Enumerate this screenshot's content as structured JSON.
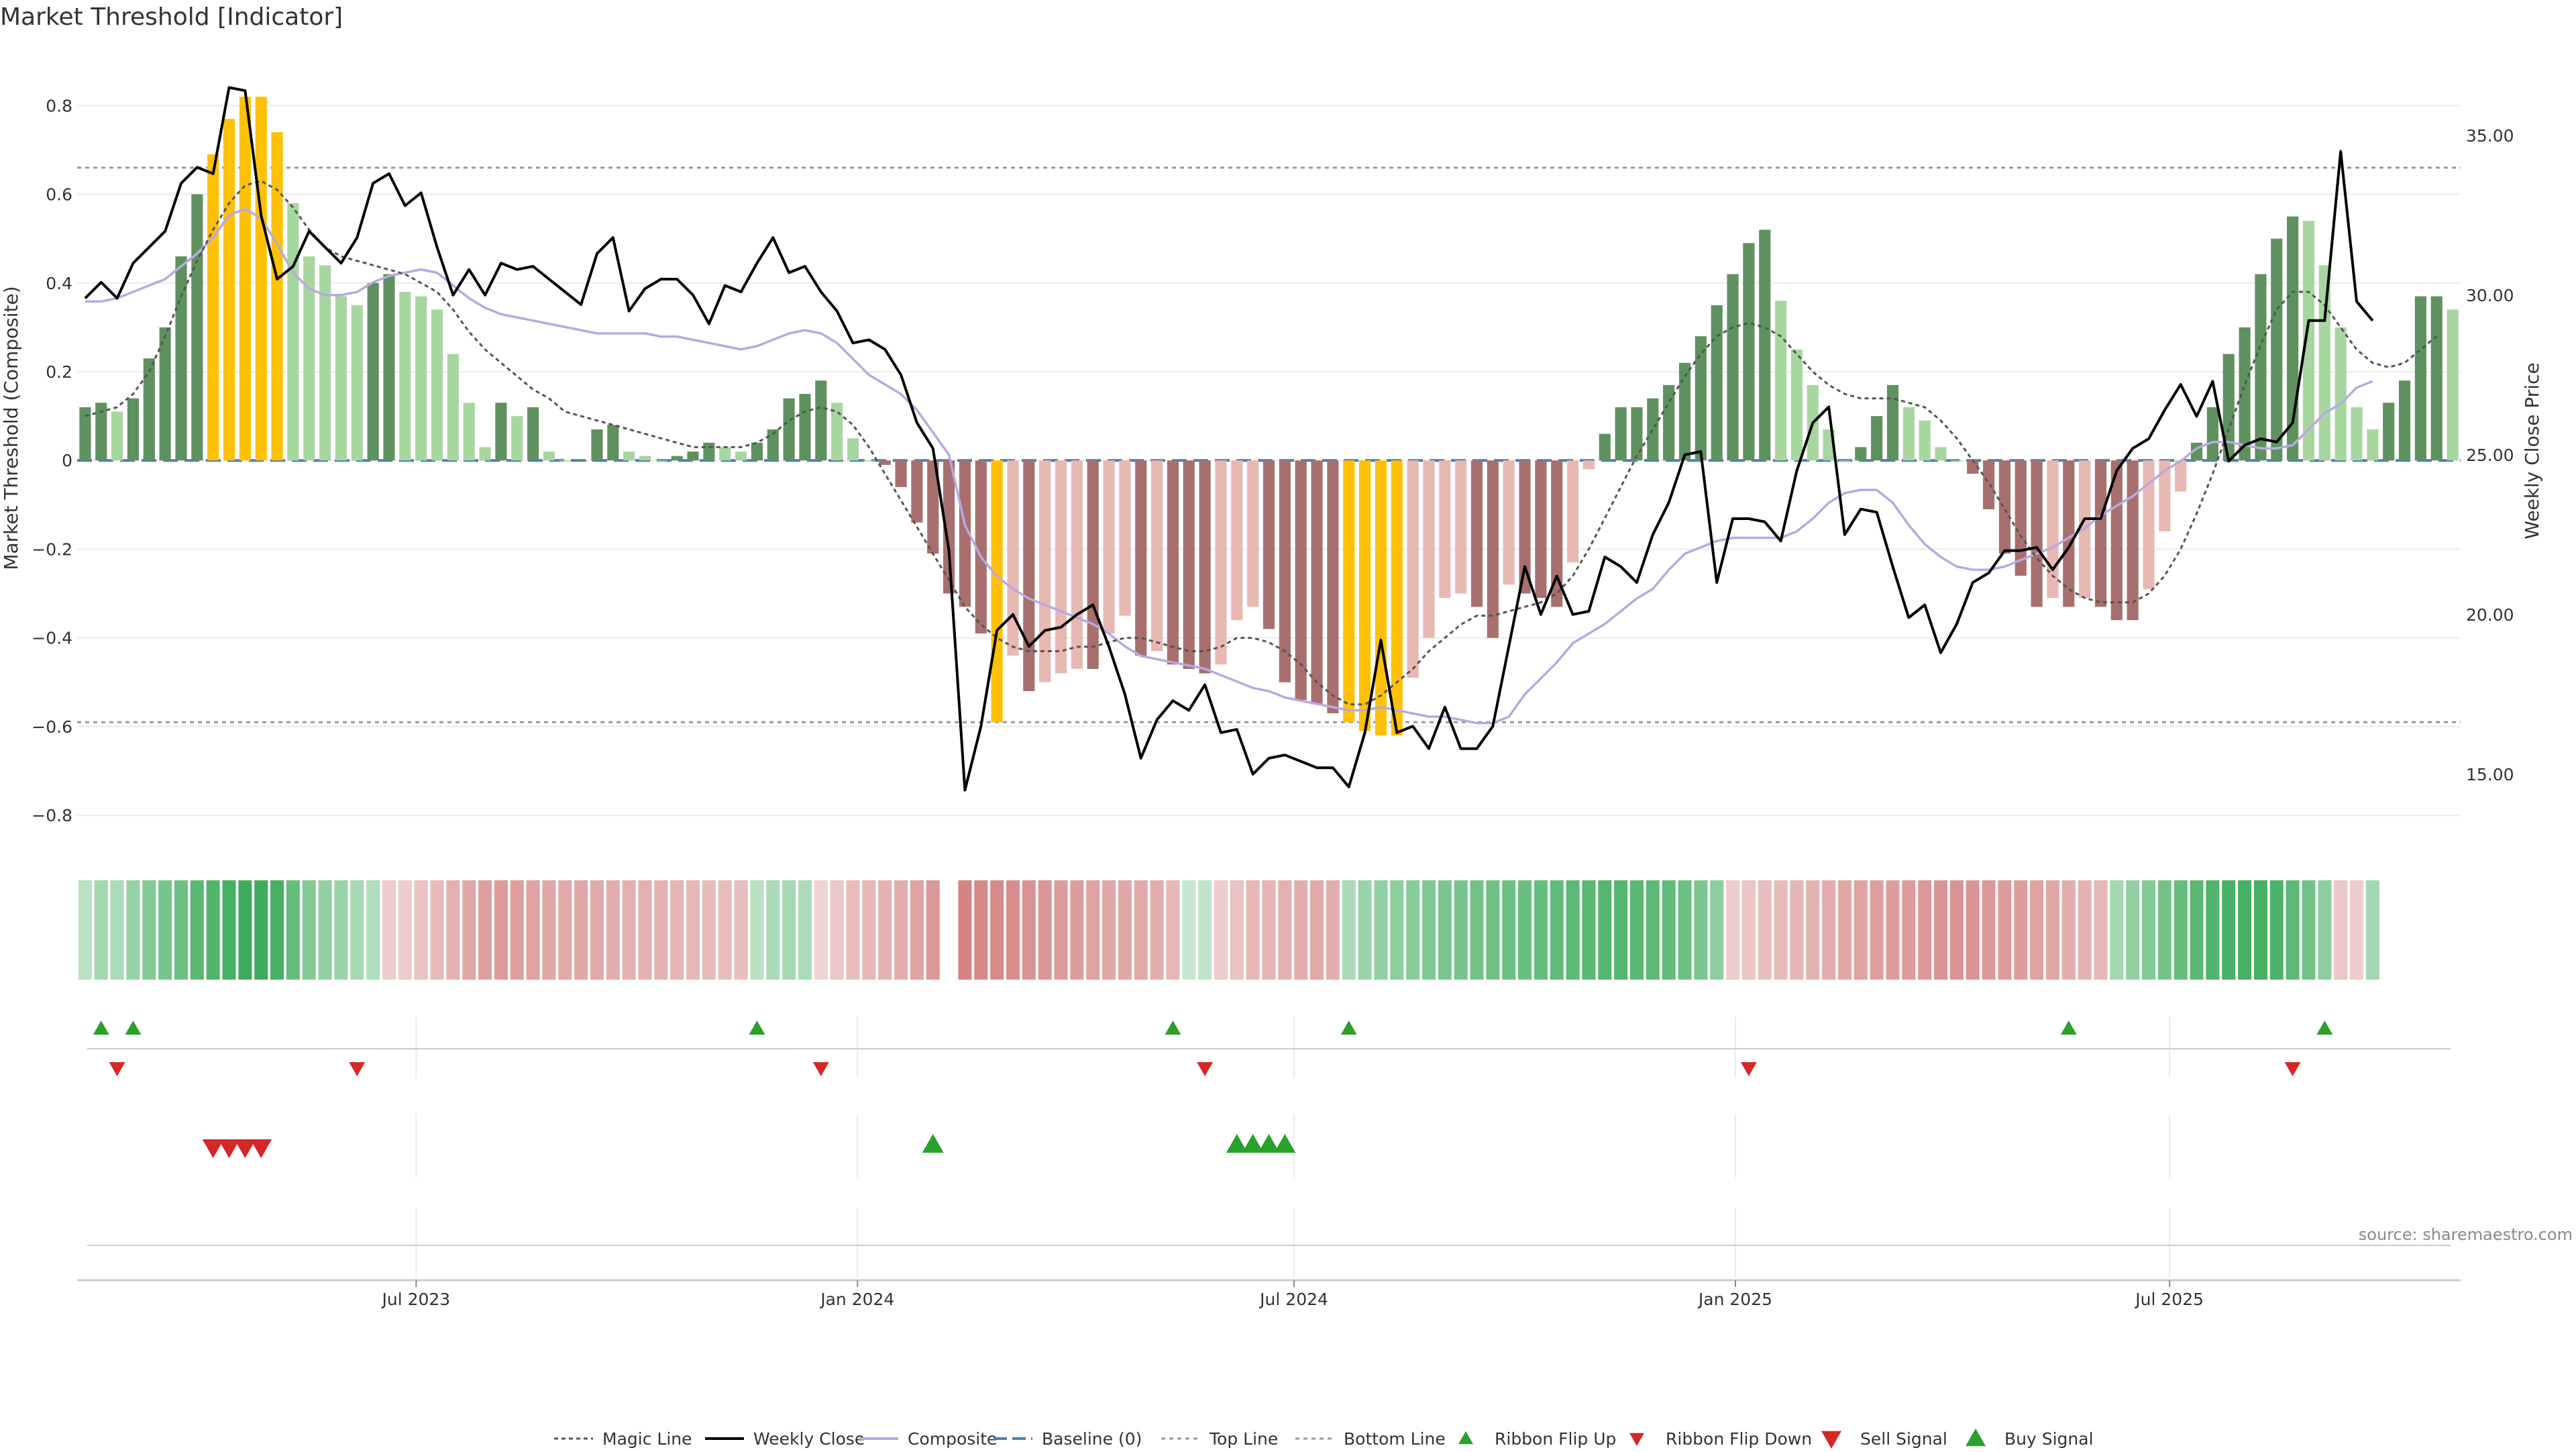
{
  "title": "Market Threshold [Indicator]",
  "source": "source: sharemaestro.com",
  "colors": {
    "bull_dark": "#5f915f",
    "bull_light": "#a8d6a0",
    "bear_dark": "#a86f6f",
    "bear_light": "#e8b8b2",
    "extreme": "#ffc107",
    "close_line": "#000000",
    "composite_line": "#b8a9e0",
    "magic_line": "#555555",
    "flip_up": "#2ca02c",
    "flip_down": "#d62728"
  },
  "chart_data": {
    "type": "bar",
    "title": "Market Threshold [Indicator]",
    "ylabel": "Market Threshold (Composite)",
    "y2label": "Weekly Close Price",
    "ylim": [
      -0.88,
      0.92
    ],
    "y_ticks": [
      -0.8,
      -0.6,
      -0.4,
      -0.2,
      0,
      0.2,
      0.4,
      0.6,
      0.8
    ],
    "y_tick_labels": [
      "−0.8",
      "−0.6",
      "−0.4",
      "−0.2",
      "0",
      "0.2",
      "0.4",
      "0.6",
      "0.8"
    ],
    "y2lim": [
      12.6,
      37.6
    ],
    "y2_ticks": [
      15,
      20,
      25,
      30,
      35
    ],
    "y2_tick_labels": [
      "15.00",
      "20.00",
      "25.00",
      "30.00",
      "35.00"
    ],
    "top_line": 0.66,
    "bottom_line": -0.59,
    "baseline": 0,
    "x_start": "2023-02-13",
    "x_end": "2025-10-27",
    "x_ticks": [
      "2023-07-01",
      "2024-01-01",
      "2024-07-01",
      "2025-01-01",
      "2025-07-01"
    ],
    "x_tick_labels": [
      "Jul 2023",
      "Jan 2024",
      "Jul 2024",
      "Jan 2025",
      "Jul 2025"
    ],
    "composite": [
      0.12,
      0.13,
      0.11,
      0.14,
      0.23,
      0.3,
      0.46,
      0.6,
      0.69,
      0.77,
      0.82,
      0.82,
      0.74,
      0.58,
      0.46,
      0.44,
      0.37,
      0.35,
      0.4,
      0.42,
      0.38,
      0.37,
      0.34,
      0.24,
      0.13,
      0.03,
      0.13,
      0.1,
      0.12,
      0.02,
      0.0,
      0.0,
      0.07,
      0.08,
      0.02,
      0.01,
      0.0,
      0.01,
      0.02,
      0.04,
      0.03,
      0.02,
      0.04,
      0.07,
      0.14,
      0.15,
      0.18,
      0.13,
      0.05,
      0.0,
      -0.01,
      -0.06,
      -0.14,
      -0.21,
      -0.3,
      -0.33,
      -0.39,
      -0.59,
      -0.44,
      -0.52,
      -0.5,
      -0.48,
      -0.47,
      -0.47,
      -0.39,
      -0.35,
      -0.44,
      -0.43,
      -0.46,
      -0.47,
      -0.48,
      -0.46,
      -0.36,
      -0.33,
      -0.38,
      -0.5,
      -0.54,
      -0.55,
      -0.57,
      -0.59,
      -0.61,
      -0.62,
      -0.62,
      -0.49,
      -0.4,
      -0.31,
      -0.3,
      -0.33,
      -0.4,
      -0.28,
      -0.3,
      -0.31,
      -0.33,
      -0.23,
      -0.02,
      0.06,
      0.12,
      0.12,
      0.14,
      0.17,
      0.22,
      0.28,
      0.35,
      0.42,
      0.49,
      0.52,
      0.36,
      0.25,
      0.17,
      0.07,
      0.0,
      0.03,
      0.1,
      0.17,
      0.12,
      0.09,
      0.03,
      0.0,
      -0.03,
      -0.11,
      -0.21,
      -0.26,
      -0.33,
      -0.31,
      -0.33,
      -0.31,
      -0.33,
      -0.36,
      -0.36,
      -0.29,
      -0.16,
      -0.07,
      0.04,
      0.12,
      0.24,
      0.3,
      0.42,
      0.5,
      0.55,
      0.54,
      0.44,
      0.3,
      0.12,
      0.07,
      0.13,
      0.18,
      0.37,
      0.37,
      0.34
    ],
    "ribbon": [
      0.18,
      0.35,
      0.28,
      0.42,
      0.55,
      0.62,
      0.7,
      0.82,
      0.88,
      0.95,
      1.0,
      1.0,
      0.95,
      0.75,
      0.55,
      0.45,
      0.4,
      0.32,
      0.25,
      -0.15,
      -0.15,
      -0.25,
      -0.32,
      -0.42,
      -0.5,
      -0.58,
      -0.62,
      -0.58,
      -0.55,
      -0.52,
      -0.48,
      -0.5,
      -0.48,
      -0.45,
      -0.42,
      -0.42,
      -0.4,
      -0.38,
      -0.35,
      -0.32,
      -0.3,
      -0.28,
      0.2,
      0.3,
      0.32,
      0.28,
      -0.1,
      -0.2,
      -0.3,
      -0.35,
      -0.4,
      -0.45,
      -0.55,
      -0.65,
      null,
      -0.85,
      -0.8,
      -0.78,
      -0.75,
      -0.7,
      -0.66,
      -0.62,
      -0.6,
      -0.55,
      -0.52,
      -0.5,
      -0.48,
      -0.45,
      -0.35,
      0.1,
      0.15,
      -0.15,
      -0.25,
      -0.35,
      -0.38,
      -0.42,
      -0.45,
      -0.48,
      -0.45,
      0.3,
      0.4,
      0.45,
      0.5,
      0.52,
      0.56,
      0.6,
      0.62,
      0.65,
      0.68,
      0.7,
      0.72,
      0.75,
      0.78,
      0.8,
      0.82,
      0.85,
      0.85,
      0.82,
      0.8,
      0.78,
      0.7,
      0.6,
      0.5,
      -0.15,
      -0.22,
      -0.28,
      -0.32,
      -0.36,
      -0.4,
      -0.45,
      -0.5,
      -0.55,
      -0.58,
      -0.6,
      -0.62,
      -0.65,
      -0.68,
      -0.7,
      -0.68,
      -0.65,
      -0.62,
      -0.6,
      -0.55,
      -0.5,
      -0.45,
      -0.4,
      -0.35,
      0.35,
      0.45,
      0.55,
      0.65,
      0.75,
      0.82,
      0.88,
      0.92,
      0.95,
      0.95,
      0.9,
      0.8,
      0.65,
      0.5,
      -0.2,
      -0.15,
      0.35
    ],
    "ribbon_flip_up": [
      1,
      3,
      42,
      68,
      79,
      124,
      140
    ],
    "ribbon_flip_down": [
      2,
      17,
      46,
      70,
      104,
      138
    ],
    "sell_signal": [
      8,
      9,
      10,
      11
    ],
    "buy_signal": [
      53,
      72,
      73,
      74,
      75
    ],
    "series": [
      {
        "name": "Magic Line",
        "axis": "left",
        "values": [
          0.1,
          0.11,
          0.12,
          0.15,
          0.2,
          0.28,
          0.37,
          0.45,
          0.52,
          0.58,
          0.62,
          0.63,
          0.61,
          0.57,
          0.52,
          0.48,
          0.46,
          0.45,
          0.44,
          0.43,
          0.42,
          0.4,
          0.38,
          0.34,
          0.29,
          0.25,
          0.22,
          0.19,
          0.16,
          0.14,
          0.11,
          0.1,
          0.09,
          0.08,
          0.07,
          0.06,
          0.05,
          0.04,
          0.03,
          0.03,
          0.03,
          0.03,
          0.04,
          0.06,
          0.09,
          0.11,
          0.12,
          0.11,
          0.08,
          0.03,
          -0.03,
          -0.09,
          -0.15,
          -0.21,
          -0.27,
          -0.33,
          -0.37,
          -0.4,
          -0.42,
          -0.43,
          -0.43,
          -0.43,
          -0.42,
          -0.42,
          -0.41,
          -0.4,
          -0.4,
          -0.41,
          -0.42,
          -0.43,
          -0.43,
          -0.42,
          -0.4,
          -0.4,
          -0.41,
          -0.43,
          -0.46,
          -0.5,
          -0.53,
          -0.55,
          -0.55,
          -0.53,
          -0.5,
          -0.47,
          -0.43,
          -0.4,
          -0.37,
          -0.35,
          -0.35,
          -0.34,
          -0.33,
          -0.32,
          -0.3,
          -0.26,
          -0.2,
          -0.13,
          -0.06,
          0.01,
          0.07,
          0.13,
          0.19,
          0.24,
          0.28,
          0.3,
          0.31,
          0.3,
          0.28,
          0.24,
          0.2,
          0.17,
          0.15,
          0.14,
          0.14,
          0.14,
          0.13,
          0.12,
          0.09,
          0.05,
          0.0,
          -0.05,
          -0.11,
          -0.17,
          -0.22,
          -0.26,
          -0.29,
          -0.31,
          -0.32,
          -0.32,
          -0.32,
          -0.3,
          -0.26,
          -0.2,
          -0.12,
          -0.03,
          0.07,
          0.17,
          0.26,
          0.34,
          0.38,
          0.38,
          0.35,
          0.3,
          0.25,
          0.22,
          0.21,
          0.22,
          0.25,
          0.28
        ]
      },
      {
        "name": "Weekly Close",
        "axis": "right",
        "values": [
          29.9,
          30.4,
          29.9,
          31.0,
          31.5,
          32.0,
          33.5,
          34.0,
          33.8,
          36.5,
          36.4,
          32.5,
          30.5,
          30.9,
          32.0,
          31.5,
          31.0,
          31.8,
          33.5,
          33.8,
          32.8,
          33.2,
          31.5,
          30.0,
          30.8,
          30.0,
          31.0,
          30.8,
          30.9,
          30.5,
          30.1,
          29.7,
          31.3,
          31.8,
          29.5,
          30.2,
          30.5,
          30.5,
          30.0,
          29.1,
          30.3,
          30.1,
          31.0,
          31.8,
          30.7,
          30.9,
          30.1,
          29.5,
          28.5,
          28.6,
          28.3,
          27.5,
          26.0,
          25.2,
          22.0,
          14.5,
          16.5,
          19.5,
          20.0,
          19.0,
          19.5,
          19.6,
          20.0,
          20.3,
          19.0,
          17.5,
          15.5,
          16.7,
          17.3,
          17.0,
          17.8,
          16.3,
          16.4,
          15.0,
          15.5,
          15.6,
          15.4,
          15.2,
          15.2,
          14.6,
          16.3,
          19.2,
          16.3,
          16.5,
          15.8,
          17.1,
          15.8,
          15.8,
          16.5,
          19.0,
          21.5,
          20.0,
          21.2,
          20.0,
          20.1,
          21.8,
          21.5,
          21.0,
          22.5,
          23.5,
          25.0,
          25.1,
          21.0,
          23.0,
          23.0,
          22.9,
          22.3,
          24.5,
          26.0,
          26.5,
          22.5,
          23.3,
          23.2,
          21.5,
          19.9,
          20.3,
          18.8,
          19.7,
          21.0,
          21.3,
          22.0,
          22.0,
          22.1,
          21.4,
          22.1,
          23.0,
          23.0,
          24.5,
          25.2,
          25.5,
          26.4,
          27.2,
          26.2,
          27.3,
          24.8,
          25.3,
          25.5,
          25.4,
          26.0,
          29.2,
          29.2,
          34.5,
          29.8,
          29.2
        ]
      },
      {
        "name": "Composite",
        "axis": "right",
        "values": [
          29.8,
          29.8,
          29.9,
          30.1,
          30.3,
          30.5,
          30.9,
          31.3,
          31.8,
          32.5,
          32.7,
          32.4,
          31.6,
          30.7,
          30.2,
          30.0,
          30.0,
          30.1,
          30.4,
          30.6,
          30.7,
          30.8,
          30.7,
          30.3,
          29.9,
          29.6,
          29.4,
          29.3,
          29.2,
          29.1,
          29.0,
          28.9,
          28.8,
          28.8,
          28.8,
          28.8,
          28.7,
          28.7,
          28.6,
          28.5,
          28.4,
          28.3,
          28.4,
          28.6,
          28.8,
          28.9,
          28.8,
          28.5,
          28.0,
          27.5,
          27.2,
          26.9,
          26.4,
          25.7,
          25.0,
          22.8,
          21.8,
          21.2,
          20.8,
          20.5,
          20.3,
          20.1,
          19.9,
          19.7,
          19.4,
          19.0,
          18.7,
          18.6,
          18.5,
          18.4,
          18.3,
          18.1,
          17.9,
          17.7,
          17.6,
          17.4,
          17.3,
          17.2,
          17.1,
          17.0,
          17.0,
          17.1,
          17.0,
          16.9,
          16.8,
          16.8,
          16.7,
          16.6,
          16.6,
          16.8,
          17.5,
          18.0,
          18.5,
          19.1,
          19.4,
          19.7,
          20.1,
          20.5,
          20.8,
          21.4,
          21.9,
          22.1,
          22.3,
          22.4,
          22.4,
          22.4,
          22.4,
          22.6,
          23.0,
          23.5,
          23.8,
          23.9,
          23.9,
          23.5,
          22.8,
          22.2,
          21.8,
          21.5,
          21.4,
          21.4,
          21.5,
          21.7,
          21.9,
          22.1,
          22.4,
          22.7,
          23.1,
          23.4,
          23.7,
          24.1,
          24.5,
          24.8,
          25.2,
          25.4,
          25.4,
          25.3,
          25.2,
          25.2,
          25.3,
          25.8,
          26.3,
          26.6,
          27.1,
          27.3
        ]
      }
    ],
    "legend": [
      "Magic Line",
      "Weekly Close",
      "Composite",
      "Baseline (0)",
      "Top Line",
      "Bottom Line",
      "Ribbon Flip Up",
      "Ribbon Flip Down",
      "Sell Signal",
      "Buy Signal"
    ],
    "legend_position": "bottom-center",
    "grid": true
  }
}
